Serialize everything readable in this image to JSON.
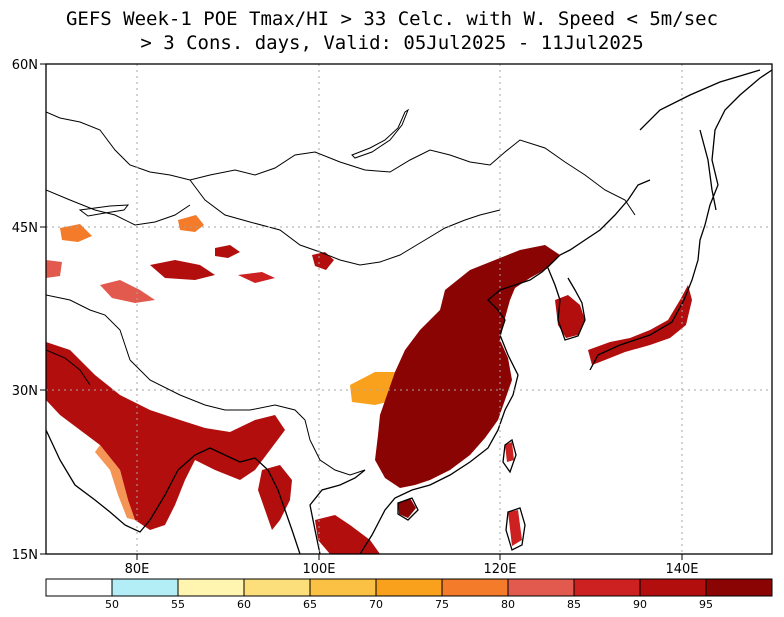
{
  "title": {
    "line1": "GEFS Week-1 POE Tmax/HI > 33 Celc. with W. Speed < 5m/sec",
    "line2": "> 3 Cons. days, Valid: 05Jul2025 - 11Jul2025"
  },
  "axes": {
    "lat_labels": [
      "60N",
      "45N",
      "30N",
      "15N"
    ],
    "lon_labels": [
      "80E",
      "100E",
      "120E",
      "140E"
    ]
  },
  "colorbar": {
    "labels": [
      "50",
      "55",
      "60",
      "65",
      "70",
      "75",
      "80",
      "85",
      "90",
      "95"
    ],
    "colors": [
      "#ffffff",
      "#b3eef6",
      "#fff4b0",
      "#fcdf7a",
      "#fbc144",
      "#f9a11c",
      "#f37b2a",
      "#e25a4e",
      "#cd2020",
      "#b20e0e",
      "#8a0404"
    ]
  },
  "colors": {
    "coast": "#000000",
    "grid": "#a6a6a6"
  }
}
